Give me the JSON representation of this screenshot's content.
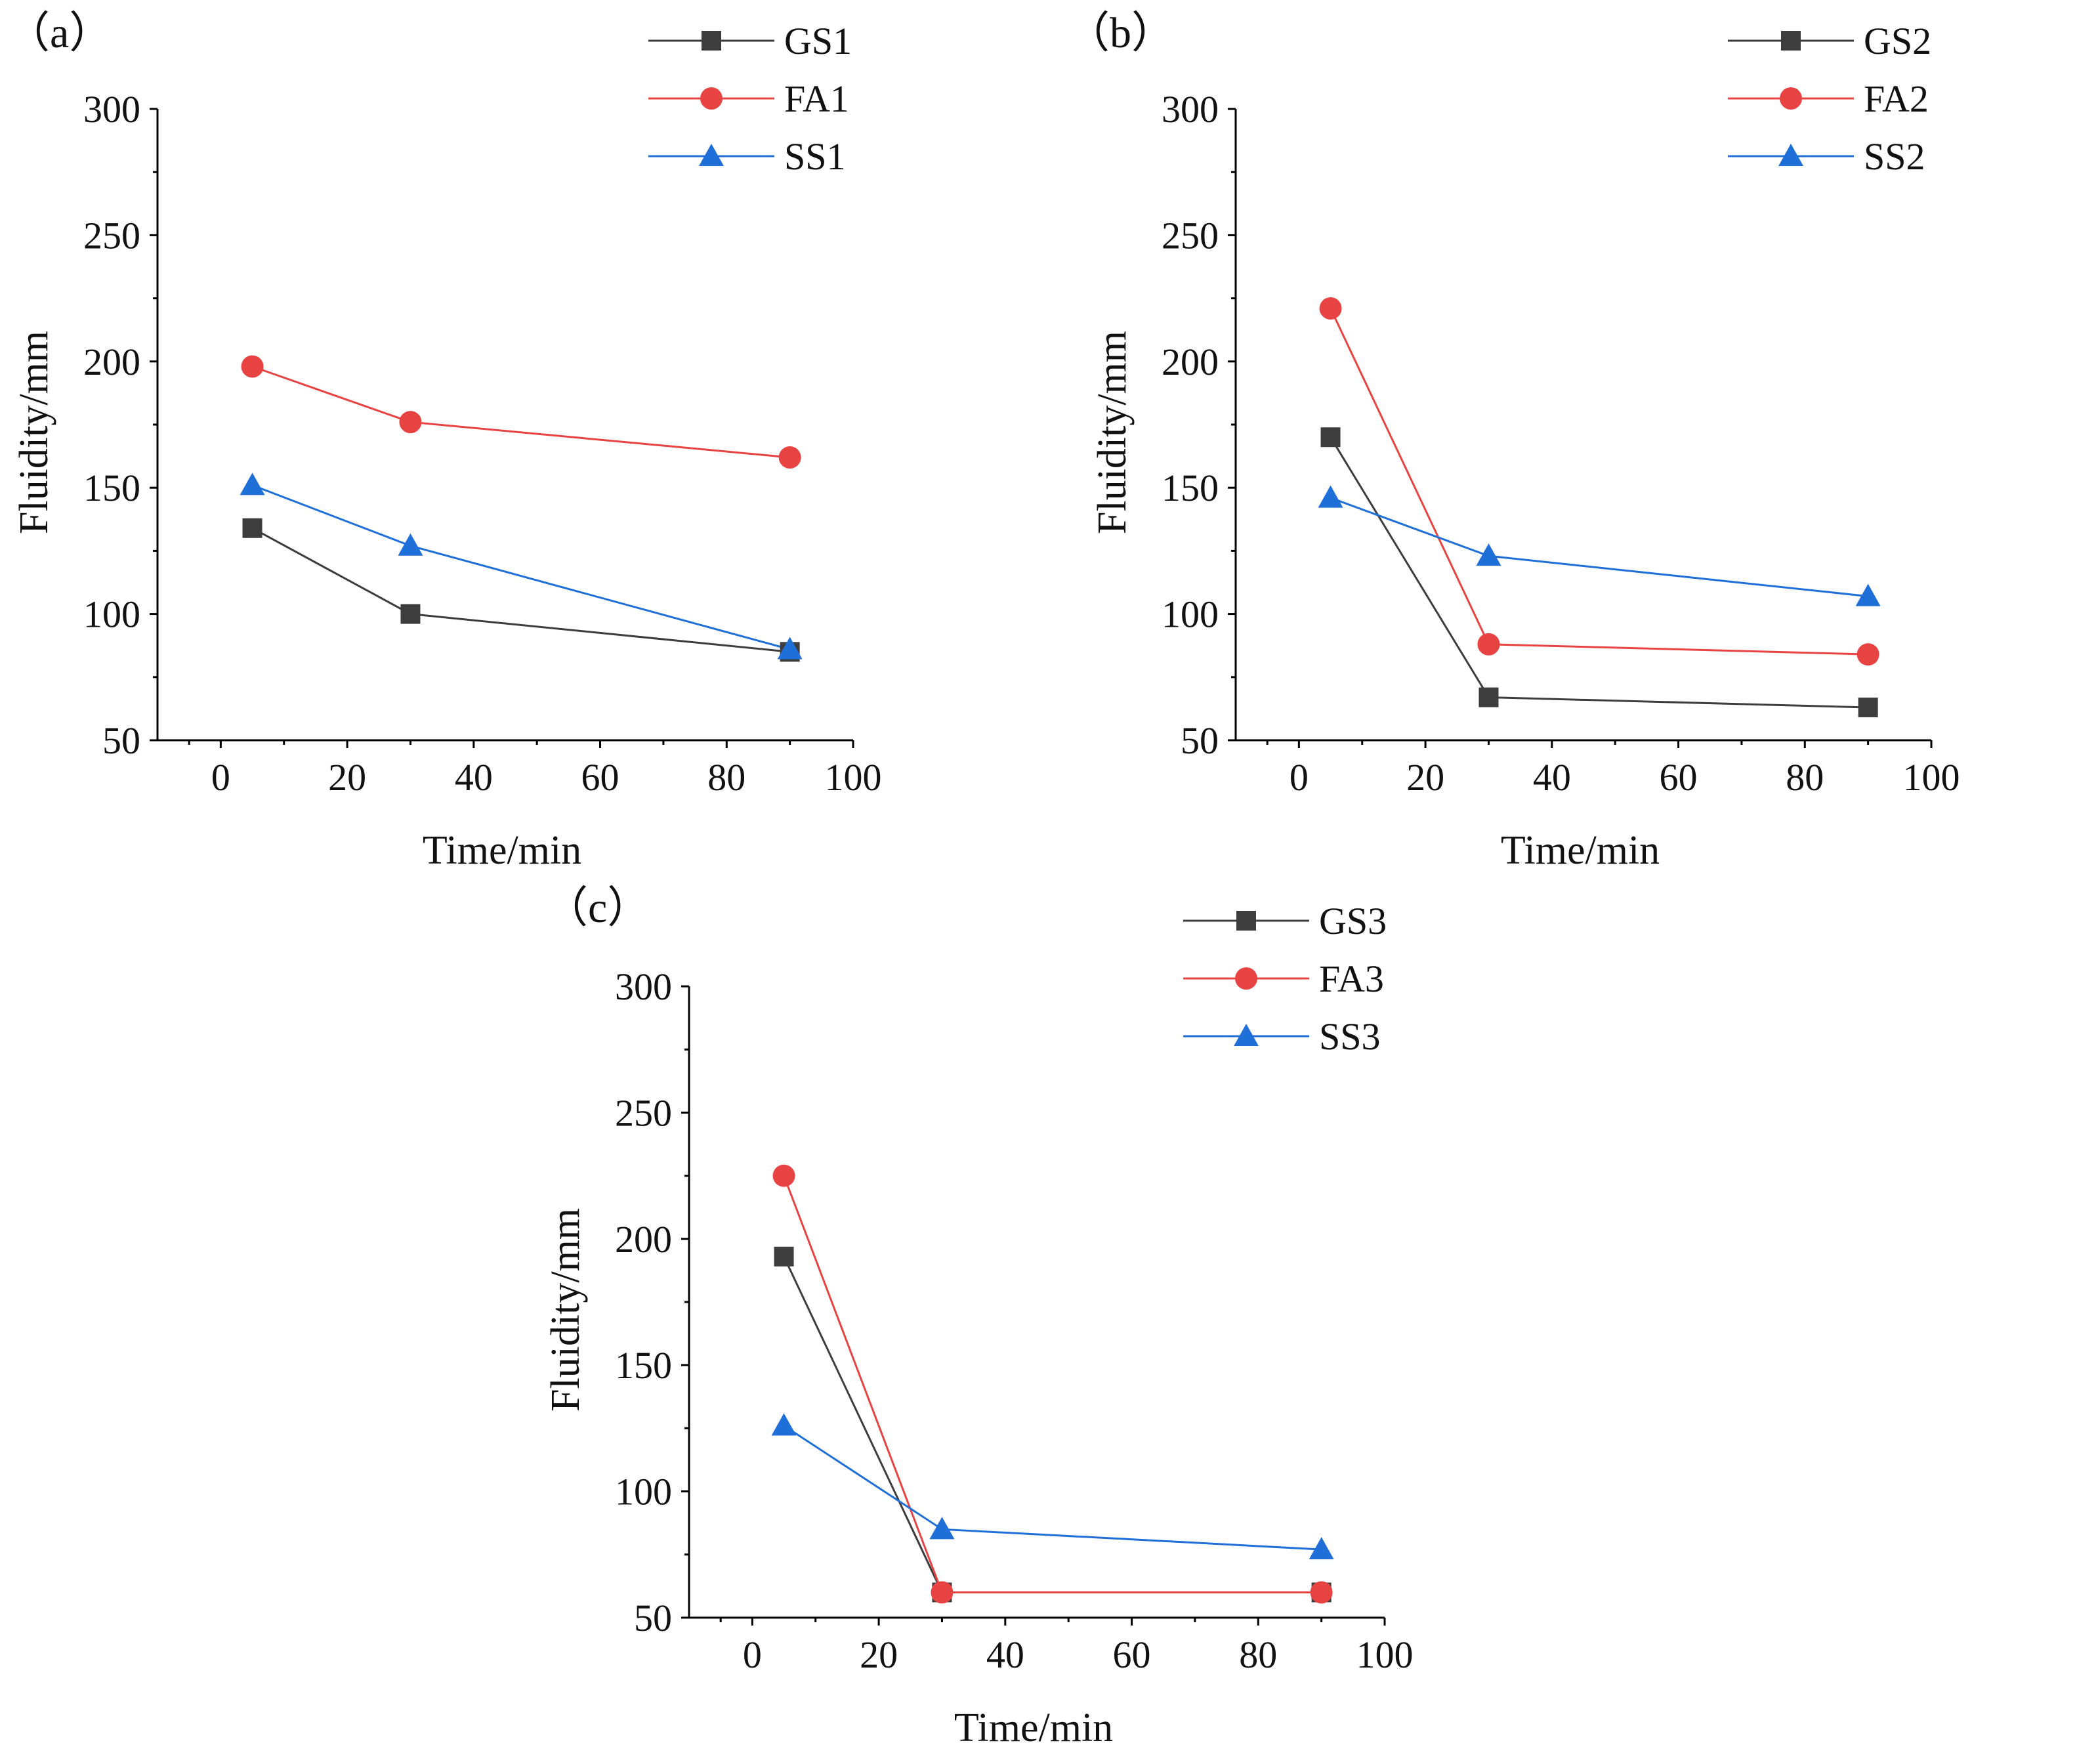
{
  "chart_data": [
    {
      "type": "line",
      "panel_label": "（a）",
      "xlabel": "Time/min",
      "ylabel": "Fluidity/mm",
      "xlim": [
        -10,
        100
      ],
      "ylim": [
        50,
        300
      ],
      "xticks": [
        0,
        20,
        40,
        60,
        80,
        100
      ],
      "yticks": [
        50,
        100,
        150,
        200,
        250,
        300
      ],
      "x": [
        5,
        30,
        90
      ],
      "series": [
        {
          "name": "GS1",
          "color": "#3d3d3d",
          "marker": "square",
          "values": [
            134,
            100,
            85
          ]
        },
        {
          "name": "FA1",
          "color": "#e84343",
          "marker": "circle",
          "values": [
            198,
            176,
            162
          ]
        },
        {
          "name": "SS1",
          "color": "#1f6fd8",
          "marker": "triangle",
          "values": [
            151,
            127,
            86
          ]
        }
      ]
    },
    {
      "type": "line",
      "panel_label": "（b）",
      "xlabel": "Time/min",
      "ylabel": "Fluidity/mm",
      "xlim": [
        -10,
        100
      ],
      "ylim": [
        50,
        300
      ],
      "xticks": [
        0,
        20,
        40,
        60,
        80,
        100
      ],
      "yticks": [
        50,
        100,
        150,
        200,
        250,
        300
      ],
      "x": [
        5,
        30,
        90
      ],
      "series": [
        {
          "name": "GS2",
          "color": "#3d3d3d",
          "marker": "square",
          "values": [
            170,
            67,
            63
          ]
        },
        {
          "name": "FA2",
          "color": "#e84343",
          "marker": "circle",
          "values": [
            221,
            88,
            84
          ]
        },
        {
          "name": "SS2",
          "color": "#1f6fd8",
          "marker": "triangle",
          "values": [
            146,
            123,
            107
          ]
        }
      ]
    },
    {
      "type": "line",
      "panel_label": "（c）",
      "xlabel": "Time/min",
      "ylabel": "Fluidity/mm",
      "xlim": [
        -10,
        100
      ],
      "ylim": [
        50,
        300
      ],
      "xticks": [
        0,
        20,
        40,
        60,
        80,
        100
      ],
      "yticks": [
        50,
        100,
        150,
        200,
        250,
        300
      ],
      "x": [
        5,
        30,
        90
      ],
      "series": [
        {
          "name": "GS3",
          "color": "#3d3d3d",
          "marker": "square",
          "values": [
            193,
            60,
            60
          ]
        },
        {
          "name": "FA3",
          "color": "#e84343",
          "marker": "circle",
          "values": [
            225,
            60,
            60
          ]
        },
        {
          "name": "SS3",
          "color": "#1f6fd8",
          "marker": "triangle",
          "values": [
            126,
            85,
            77
          ]
        }
      ]
    }
  ]
}
